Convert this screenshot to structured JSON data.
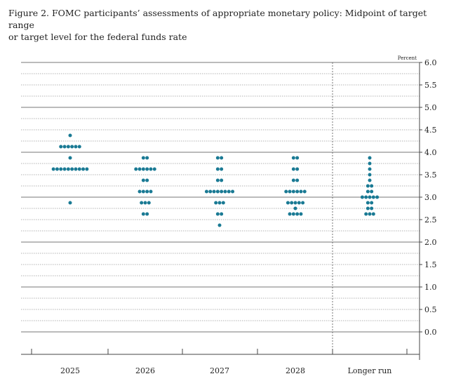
{
  "title": {
    "line1": "Figure 2. FOMC participants’ assessments of appropriate monetary policy: Midpoint of target range",
    "line2": "or target level for the federal funds rate"
  },
  "chart_data": {
    "type": "scatter",
    "title": "Figure 2. FOMC participants’ assessments of appropriate monetary policy: Midpoint of target range or target level for the federal funds rate",
    "unit_label": "Percent",
    "categories": [
      "2025",
      "2026",
      "2027",
      "2028",
      "Longer run"
    ],
    "ylim": [
      -0.25,
      6.0
    ],
    "y_ticks": [
      "6.0",
      "5.5",
      "5.0",
      "4.5",
      "4.0",
      "3.5",
      "3.0",
      "2.5",
      "2.0",
      "1.5",
      "1.0",
      "0.5",
      "0.0"
    ],
    "grid": true,
    "dot_color": "#1a7a94",
    "dots": [
      {
        "category": "2025",
        "y": 4.375,
        "count": 1
      },
      {
        "category": "2025",
        "y": 4.125,
        "count": 6
      },
      {
        "category": "2025",
        "y": 3.875,
        "count": 1
      },
      {
        "category": "2025",
        "y": 3.625,
        "count": 10
      },
      {
        "category": "2025",
        "y": 2.875,
        "count": 1
      },
      {
        "category": "2026",
        "y": 3.875,
        "count": 2
      },
      {
        "category": "2026",
        "y": 3.625,
        "count": 6
      },
      {
        "category": "2026",
        "y": 3.375,
        "count": 2
      },
      {
        "category": "2026",
        "y": 3.125,
        "count": 4
      },
      {
        "category": "2026",
        "y": 2.875,
        "count": 3
      },
      {
        "category": "2026",
        "y": 2.625,
        "count": 2
      },
      {
        "category": "2027",
        "y": 3.875,
        "count": 2
      },
      {
        "category": "2027",
        "y": 3.625,
        "count": 2
      },
      {
        "category": "2027",
        "y": 3.375,
        "count": 2
      },
      {
        "category": "2027",
        "y": 3.125,
        "count": 8
      },
      {
        "category": "2027",
        "y": 2.875,
        "count": 3
      },
      {
        "category": "2027",
        "y": 2.625,
        "count": 2
      },
      {
        "category": "2027",
        "y": 2.375,
        "count": 1
      },
      {
        "category": "2028",
        "y": 3.875,
        "count": 2
      },
      {
        "category": "2028",
        "y": 3.625,
        "count": 2
      },
      {
        "category": "2028",
        "y": 3.375,
        "count": 2
      },
      {
        "category": "2028",
        "y": 3.125,
        "count": 6
      },
      {
        "category": "2028",
        "y": 2.875,
        "count": 5
      },
      {
        "category": "2028",
        "y": 2.75,
        "count": 1
      },
      {
        "category": "2028",
        "y": 2.625,
        "count": 4
      },
      {
        "category": "Longer run",
        "y": 3.875,
        "count": 1
      },
      {
        "category": "Longer run",
        "y": 3.75,
        "count": 1
      },
      {
        "category": "Longer run",
        "y": 3.625,
        "count": 1
      },
      {
        "category": "Longer run",
        "y": 3.5,
        "count": 1
      },
      {
        "category": "Longer run",
        "y": 3.375,
        "count": 1
      },
      {
        "category": "Longer run",
        "y": 3.25,
        "count": 2
      },
      {
        "category": "Longer run",
        "y": 3.125,
        "count": 2
      },
      {
        "category": "Longer run",
        "y": 3.0,
        "count": 5
      },
      {
        "category": "Longer run",
        "y": 2.875,
        "count": 2
      },
      {
        "category": "Longer run",
        "y": 2.75,
        "count": 2
      },
      {
        "category": "Longer run",
        "y": 2.625,
        "count": 3
      }
    ]
  }
}
